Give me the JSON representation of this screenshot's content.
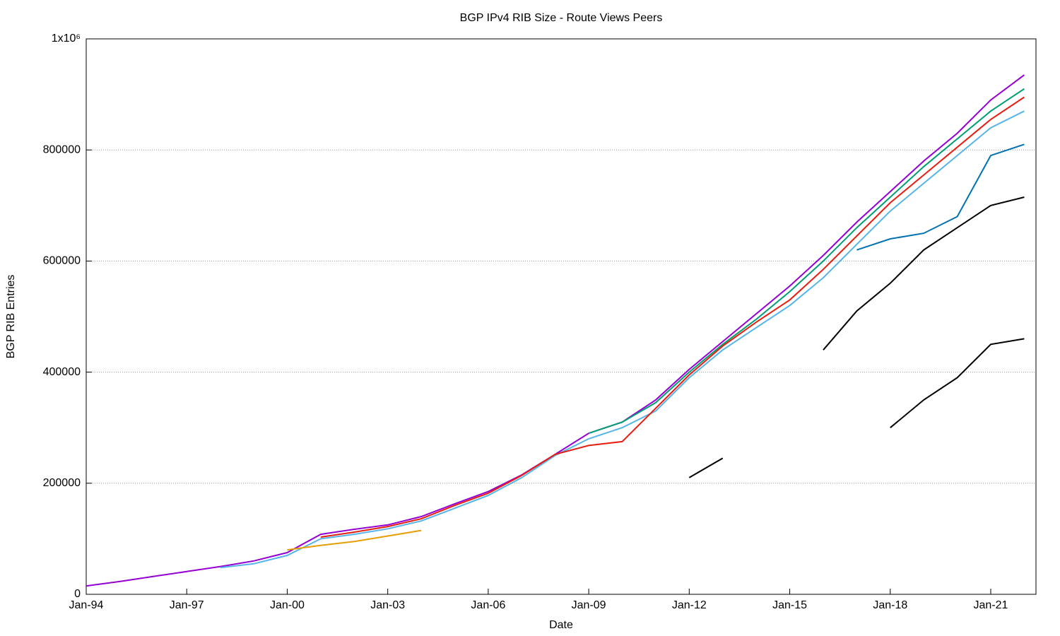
{
  "chart_data": {
    "type": "line",
    "title": "BGP IPv4 RIB Size - Route Views Peers",
    "x_label": "Date",
    "y_label": "BGP RIB Entries",
    "x": [
      1994,
      1995,
      1996,
      1997,
      1998,
      1999,
      2000,
      2001,
      2002,
      2003,
      2004,
      2005,
      2006,
      2007,
      2008,
      2009,
      2010,
      2011,
      2012,
      2013,
      2014,
      2015,
      2016,
      2017,
      2018,
      2019,
      2020,
      2021,
      2022
    ],
    "xlim": [
      1994,
      2022.35
    ],
    "xticks": [
      {
        "value": 1994,
        "label": "Jan-94"
      },
      {
        "value": 1997,
        "label": "Jan-97"
      },
      {
        "value": 2000,
        "label": "Jan-00"
      },
      {
        "value": 2003,
        "label": "Jan-03"
      },
      {
        "value": 2006,
        "label": "Jan-06"
      },
      {
        "value": 2009,
        "label": "Jan-09"
      },
      {
        "value": 2012,
        "label": "Jan-12"
      },
      {
        "value": 2015,
        "label": "Jan-15"
      },
      {
        "value": 2018,
        "label": "Jan-18"
      },
      {
        "value": 2021,
        "label": "Jan-21"
      }
    ],
    "ylim": [
      0,
      1000000
    ],
    "yticks": [
      0,
      200000,
      400000,
      600000,
      800000,
      {
        "value": 1000000,
        "label": "1x10⁶"
      }
    ],
    "grid": true,
    "series": [
      {
        "color": "#9400d3",
        "values": [
          15000,
          23000,
          32000,
          41000,
          50000,
          60000,
          75000,
          108000,
          117000,
          125000,
          140000,
          163000,
          185000,
          215000,
          252000,
          290000,
          310000,
          350000,
          405000,
          455000,
          505000,
          555000,
          610000,
          670000,
          725000,
          780000,
          830000,
          890000,
          935000
        ]
      },
      {
        "color": "#009e73",
        "values": [
          null,
          null,
          null,
          null,
          null,
          null,
          null,
          null,
          null,
          null,
          null,
          null,
          null,
          null,
          null,
          290000,
          310000,
          345000,
          400000,
          450000,
          495000,
          545000,
          600000,
          660000,
          715000,
          770000,
          820000,
          870000,
          910000
        ]
      },
      {
        "color": "#56b4e9",
        "values": [
          null,
          null,
          null,
          null,
          48000,
          55000,
          70000,
          100000,
          108000,
          118000,
          132000,
          155000,
          178000,
          210000,
          250000,
          280000,
          300000,
          330000,
          390000,
          440000,
          480000,
          520000,
          570000,
          630000,
          690000,
          740000,
          790000,
          840000,
          870000
        ]
      },
      {
        "color": "#e51e10",
        "values": [
          null,
          null,
          null,
          null,
          null,
          null,
          null,
          103000,
          112000,
          122000,
          136000,
          160000,
          182000,
          214000,
          252000,
          268000,
          275000,
          335000,
          395000,
          447000,
          490000,
          530000,
          585000,
          645000,
          705000,
          755000,
          805000,
          855000,
          895000
        ]
      },
      {
        "color": "#0072b2",
        "values": [
          null,
          null,
          null,
          null,
          null,
          null,
          null,
          null,
          null,
          null,
          null,
          null,
          null,
          null,
          null,
          null,
          null,
          null,
          null,
          null,
          null,
          null,
          null,
          620000,
          640000,
          650000,
          680000,
          790000,
          810000
        ]
      },
      {
        "color": "#e69f00",
        "values": [
          null,
          null,
          null,
          null,
          null,
          null,
          80000,
          88000,
          95000,
          105000,
          115000,
          null,
          null,
          null,
          null,
          null,
          null,
          null,
          null,
          null,
          null,
          null,
          null,
          null,
          null,
          null,
          null,
          null,
          null
        ]
      },
      {
        "color": "#000000",
        "values": [
          null,
          null,
          null,
          null,
          null,
          null,
          null,
          null,
          null,
          null,
          null,
          null,
          null,
          null,
          null,
          null,
          null,
          null,
          null,
          null,
          null,
          null,
          440000,
          510000,
          560000,
          620000,
          660000,
          700000,
          715000
        ]
      },
      {
        "color": "#000000",
        "values": [
          null,
          null,
          null,
          null,
          null,
          null,
          null,
          null,
          null,
          null,
          null,
          null,
          null,
          null,
          null,
          null,
          null,
          null,
          null,
          null,
          null,
          null,
          null,
          null,
          300000,
          350000,
          390000,
          450000,
          460000
        ]
      },
      {
        "color": "#000000",
        "values": [
          null,
          null,
          null,
          null,
          null,
          null,
          null,
          null,
          null,
          null,
          null,
          null,
          null,
          null,
          null,
          null,
          null,
          null,
          210000,
          245000,
          null,
          null,
          null,
          null,
          null,
          null,
          null,
          null,
          null
        ]
      }
    ]
  }
}
